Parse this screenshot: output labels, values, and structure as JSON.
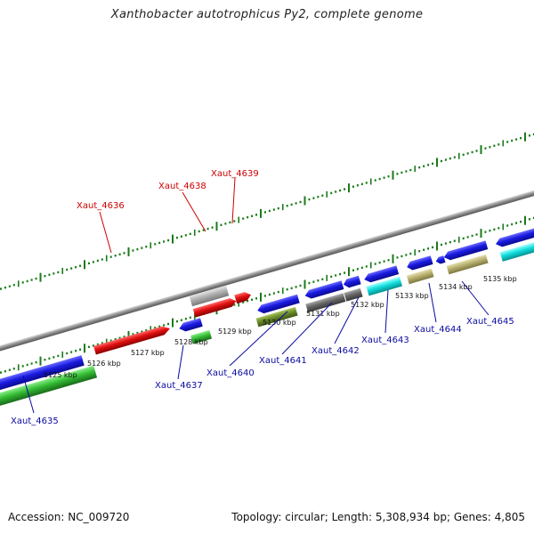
{
  "title": "Xanthobacter autotrophicus Py2, complete genome",
  "footer": {
    "accession_label": "Accession:",
    "accession_value": "NC_009720",
    "topology_label": "Topology:",
    "topology_value": "circular",
    "length_label": "Length:",
    "length_value": "5,308,934 bp",
    "genes_label": "Genes:",
    "genes_value": "4,805"
  },
  "colors": {
    "forward_strand": "#1a1ae0",
    "reverse_strand": "#e01010",
    "tick": "#1a7a1a",
    "backbone": "#808080",
    "label_forward": "#0a0aa0",
    "label_reverse": "#cc0000",
    "gene_green": "#33bb33",
    "gene_grey": "#b0b0b0",
    "gene_olive": "#6b8c2a",
    "gene_darkgrey": "#666666",
    "gene_cyan": "#11dddd",
    "gene_khaki": "#b8b070"
  },
  "axis_labels": [
    "5125 kbp",
    "5126 kbp",
    "5127 kbp",
    "5128 kbp",
    "5129 kbp",
    "5130 kbp",
    "5131 kbp",
    "5132 kbp",
    "5133 kbp",
    "5134 kbp",
    "5135 kbp"
  ],
  "gene_labels_reverse": [
    "Xaut_4636",
    "Xaut_4638",
    "Xaut_4639"
  ],
  "gene_labels_forward": [
    "Xaut_4635",
    "Xaut_4637",
    "Xaut_4640",
    "Xaut_4641",
    "Xaut_4642",
    "Xaut_4643",
    "Xaut_4644",
    "Xaut_4645"
  ]
}
